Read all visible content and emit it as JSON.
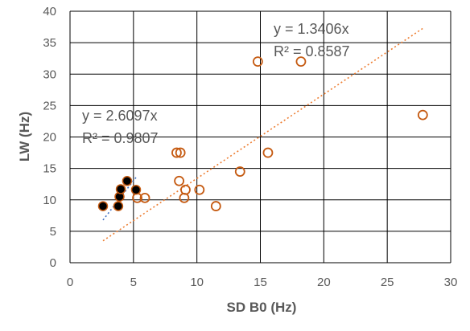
{
  "chart_data": {
    "type": "scatter",
    "xlabel": "SD B0 (Hz)",
    "ylabel": "LW (Hz)",
    "xlim": [
      0,
      30
    ],
    "ylim": [
      0,
      40
    ],
    "x_ticks": [
      "0",
      "5",
      "10",
      "15",
      "20",
      "25",
      "30"
    ],
    "y_ticks": [
      "0",
      "5",
      "10",
      "15",
      "20",
      "25",
      "30",
      "35",
      "40"
    ],
    "grid": true,
    "legend": "none",
    "series": [
      {
        "marker": "filled-circle",
        "color": "#000000",
        "edge_color": "#c55a11",
        "points": [
          {
            "x": 2.6,
            "y": 9.0
          },
          {
            "x": 3.8,
            "y": 9.0
          },
          {
            "x": 3.9,
            "y": 10.5
          },
          {
            "x": 4.0,
            "y": 11.7
          },
          {
            "x": 4.5,
            "y": 13.0
          },
          {
            "x": 5.2,
            "y": 11.6
          }
        ],
        "trendline": {
          "slope": 2.6097,
          "x_range": [
            2.6,
            5.2
          ],
          "color": "#4472c4",
          "equation": "y = 2.6097x",
          "r2": "R² = 0.9807"
        }
      },
      {
        "marker": "hollow-circle",
        "color": "#c55a11",
        "points": [
          {
            "x": 5.3,
            "y": 10.3
          },
          {
            "x": 5.9,
            "y": 10.3
          },
          {
            "x": 8.4,
            "y": 17.5
          },
          {
            "x": 8.7,
            "y": 17.5
          },
          {
            "x": 8.6,
            "y": 13.0
          },
          {
            "x": 9.0,
            "y": 10.3
          },
          {
            "x": 9.1,
            "y": 11.6
          },
          {
            "x": 10.2,
            "y": 11.6
          },
          {
            "x": 11.5,
            "y": 9.0
          },
          {
            "x": 13.4,
            "y": 14.5
          },
          {
            "x": 14.8,
            "y": 32.0
          },
          {
            "x": 15.6,
            "y": 17.5
          },
          {
            "x": 18.2,
            "y": 32.0
          },
          {
            "x": 27.8,
            "y": 23.5
          }
        ],
        "trendline": {
          "slope": 1.3406,
          "x_range": [
            2.6,
            27.8
          ],
          "color": "#ed7d31",
          "equation": "y = 1.3406x",
          "r2": "R² = 0.8587"
        }
      }
    ]
  }
}
